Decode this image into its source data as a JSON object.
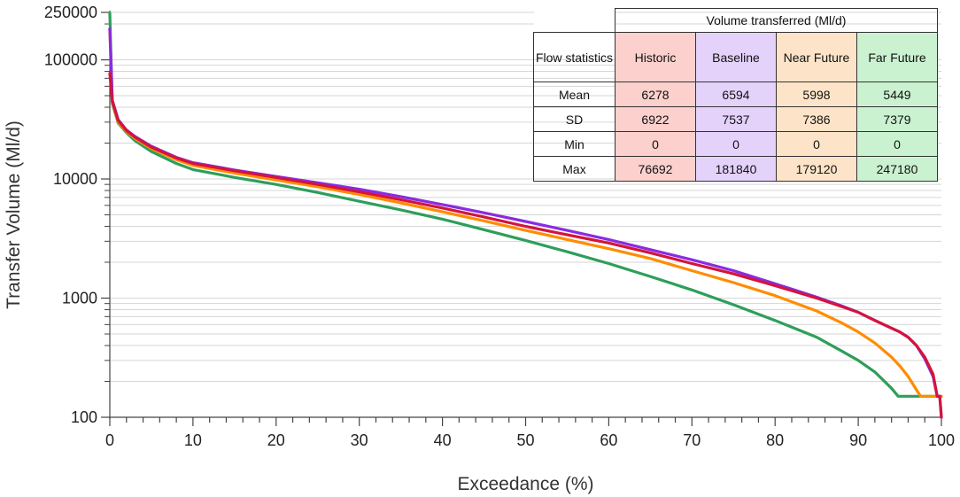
{
  "chart_data": {
    "type": "line",
    "xlabel": "Exceedance (%)",
    "ylabel": "Transfer Volume (Ml/d)",
    "xlim": [
      0,
      100
    ],
    "ylim": [
      100,
      250000
    ],
    "yscale": "log",
    "x_ticks": [
      0,
      10,
      20,
      30,
      40,
      50,
      60,
      70,
      80,
      90,
      100
    ],
    "y_ticks": [
      100,
      1000,
      10000,
      100000,
      250000
    ],
    "grid": "horizontal minor gridlines",
    "series": [
      {
        "name": "Historic",
        "color": "#d4143c",
        "x": [
          0,
          0.3,
          1,
          2,
          3,
          5,
          8,
          10,
          15,
          20,
          25,
          30,
          35,
          40,
          45,
          50,
          55,
          60,
          65,
          70,
          75,
          80,
          85,
          88,
          90,
          92,
          94,
          95,
          96,
          97,
          98,
          99,
          99.5,
          99.8,
          100
        ],
        "y": [
          76692,
          45000,
          31000,
          25500,
          22500,
          18500,
          15000,
          13500,
          11700,
          10300,
          9000,
          7800,
          6700,
          5700,
          4800,
          4000,
          3400,
          2900,
          2400,
          1950,
          1600,
          1270,
          1000,
          850,
          760,
          650,
          560,
          520,
          470,
          400,
          320,
          230,
          150,
          150,
          100
        ]
      },
      {
        "name": "Baseline",
        "color": "#8a2be2",
        "x": [
          0,
          0.3,
          1,
          2,
          3,
          5,
          8,
          10,
          15,
          20,
          25,
          30,
          35,
          40,
          45,
          50,
          55,
          60,
          65,
          70,
          75,
          80,
          85,
          88,
          90,
          92,
          94,
          95,
          96,
          97,
          98,
          99,
          99.5,
          99.8,
          100
        ],
        "y": [
          181840,
          46000,
          31500,
          25800,
          22800,
          18800,
          15200,
          13700,
          11900,
          10500,
          9300,
          8200,
          7100,
          6100,
          5200,
          4400,
          3700,
          3100,
          2550,
          2100,
          1700,
          1320,
          1020,
          860,
          760,
          650,
          560,
          520,
          470,
          400,
          310,
          220,
          150,
          150,
          100
        ]
      },
      {
        "name": "Near Future",
        "color": "#ff8c00",
        "x": [
          0,
          0.3,
          1,
          2,
          3,
          5,
          8,
          10,
          15,
          20,
          25,
          30,
          35,
          40,
          45,
          50,
          55,
          60,
          65,
          70,
          75,
          80,
          85,
          88,
          90,
          92,
          94,
          95,
          96,
          97,
          97.5,
          100
        ],
        "y": [
          179120,
          44000,
          30000,
          25000,
          22000,
          18000,
          14500,
          13000,
          11200,
          9800,
          8600,
          7400,
          6300,
          5300,
          4450,
          3700,
          3100,
          2600,
          2150,
          1700,
          1350,
          1050,
          780,
          620,
          520,
          420,
          320,
          270,
          220,
          170,
          150,
          150
        ]
      },
      {
        "name": "Far Future",
        "color": "#2e9e5a",
        "x": [
          0,
          0.3,
          1,
          2,
          3,
          5,
          8,
          10,
          15,
          20,
          25,
          30,
          35,
          40,
          45,
          50,
          55,
          60,
          65,
          70,
          75,
          80,
          85,
          88,
          90,
          92,
          94,
          94.8,
          100
        ],
        "y": [
          247180,
          43000,
          29500,
          24500,
          21000,
          17000,
          13500,
          12000,
          10300,
          9000,
          7700,
          6500,
          5500,
          4600,
          3750,
          3050,
          2450,
          1950,
          1520,
          1170,
          880,
          650,
          470,
          360,
          300,
          240,
          175,
          150,
          150
        ]
      }
    ]
  },
  "table": {
    "group_header": "Volume transferred (Ml/d)",
    "row_header_title": "Flow statistics",
    "columns": [
      "Historic",
      "Baseline",
      "Near Future",
      "Far Future"
    ],
    "rows": [
      {
        "label": "Mean",
        "values": [
          "6278",
          "6594",
          "5998",
          "5449"
        ]
      },
      {
        "label": "SD",
        "values": [
          "6922",
          "7537",
          "7386",
          "7379"
        ]
      },
      {
        "label": "Min",
        "values": [
          "0",
          "0",
          "0",
          "0"
        ]
      },
      {
        "label": "Max",
        "values": [
          "76692",
          "181840",
          "179120",
          "247180"
        ]
      }
    ]
  }
}
